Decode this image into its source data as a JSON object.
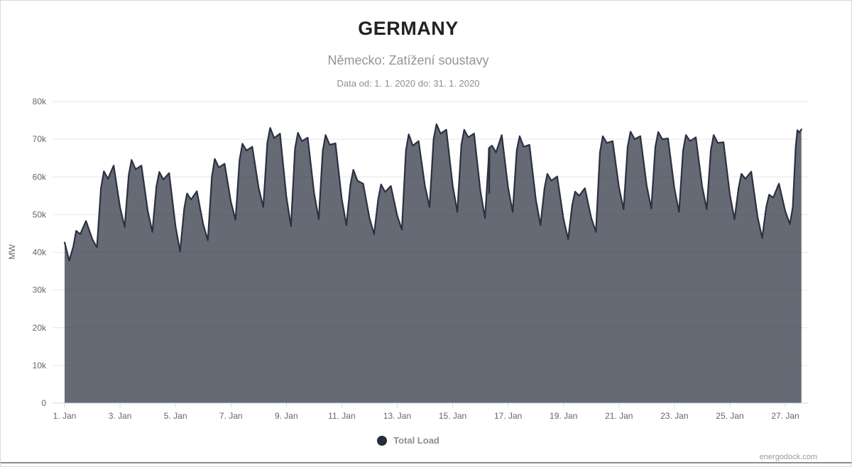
{
  "chart_data": {
    "type": "area",
    "title": "GERMANY",
    "subtitle": "Německo: Zatížení soustavy",
    "date_range": "Data od: 1. 1. 2020 do: 31. 1. 2020",
    "xlabel": "",
    "ylabel": "MW",
    "ylim": [
      0,
      80000
    ],
    "x_unit": "hours since 2020-01-01 00:00",
    "grid": "horizontal",
    "legend_position": "bottom-center",
    "y_axis_ticks": [
      {
        "value": 0,
        "label": "0"
      },
      {
        "value": 10000,
        "label": "10k"
      },
      {
        "value": 20000,
        "label": "20k"
      },
      {
        "value": 30000,
        "label": "30k"
      },
      {
        "value": 40000,
        "label": "40k"
      },
      {
        "value": 50000,
        "label": "50k"
      },
      {
        "value": 60000,
        "label": "60k"
      },
      {
        "value": 70000,
        "label": "70k"
      },
      {
        "value": 80000,
        "label": "80k"
      }
    ],
    "x_axis_ticks": [
      {
        "day": 0,
        "label": "1. Jan"
      },
      {
        "day": 2,
        "label": "3. Jan"
      },
      {
        "day": 4,
        "label": "5. Jan"
      },
      {
        "day": 6,
        "label": "7. Jan"
      },
      {
        "day": 8,
        "label": "9. Jan"
      },
      {
        "day": 10,
        "label": "11. Jan"
      },
      {
        "day": 12,
        "label": "13. Jan"
      },
      {
        "day": 14,
        "label": "15. Jan"
      },
      {
        "day": 16,
        "label": "17. Jan"
      },
      {
        "day": 18,
        "label": "19. Jan"
      },
      {
        "day": 20,
        "label": "21. Jan"
      },
      {
        "day": 22,
        "label": "23. Jan"
      },
      {
        "day": 24,
        "label": "25. Jan"
      },
      {
        "day": 26,
        "label": "27. Jan"
      }
    ],
    "series": [
      {
        "name": "Total Load",
        "color": "#2b3140",
        "fill": "rgba(43,49,64,0.72)",
        "marker_color": "#262c3a",
        "points": [
          [
            0,
            42600
          ],
          [
            4,
            37800
          ],
          [
            7.5,
            41500
          ],
          [
            10,
            45700
          ],
          [
            13.5,
            44800
          ],
          [
            18.5,
            48300
          ],
          [
            24,
            43500
          ],
          [
            28,
            41300
          ],
          [
            31.5,
            57000
          ],
          [
            34,
            61500
          ],
          [
            37.5,
            59500
          ],
          [
            42.5,
            63000
          ],
          [
            48,
            51900
          ],
          [
            52,
            46700
          ],
          [
            55.5,
            60500
          ],
          [
            58,
            64500
          ],
          [
            61.5,
            62000
          ],
          [
            66.5,
            63000
          ],
          [
            72,
            51000
          ],
          [
            76,
            45400
          ],
          [
            79.5,
            57500
          ],
          [
            82,
            61300
          ],
          [
            85.5,
            59300
          ],
          [
            90.5,
            61000
          ],
          [
            96,
            46900
          ],
          [
            100,
            40200
          ],
          [
            103.5,
            51500
          ],
          [
            106,
            55600
          ],
          [
            109.5,
            54000
          ],
          [
            114.5,
            56200
          ],
          [
            120,
            47400
          ],
          [
            124,
            43200
          ],
          [
            127.5,
            60000
          ],
          [
            130,
            64800
          ],
          [
            133.5,
            62500
          ],
          [
            138.5,
            63500
          ],
          [
            144,
            53400
          ],
          [
            148,
            48600
          ],
          [
            151.5,
            64500
          ],
          [
            154,
            68800
          ],
          [
            157.5,
            67000
          ],
          [
            162.5,
            68000
          ],
          [
            168,
            57100
          ],
          [
            172,
            52000
          ],
          [
            175.5,
            69000
          ],
          [
            178,
            73000
          ],
          [
            181.5,
            70300
          ],
          [
            186.5,
            71500
          ],
          [
            192,
            54800
          ],
          [
            196,
            46900
          ],
          [
            199.5,
            67500
          ],
          [
            202,
            71700
          ],
          [
            205.5,
            69500
          ],
          [
            210.5,
            70400
          ],
          [
            216,
            55700
          ],
          [
            220,
            48800
          ],
          [
            223.5,
            67000
          ],
          [
            226,
            71100
          ],
          [
            229.5,
            68500
          ],
          [
            234.5,
            68900
          ],
          [
            240,
            54100
          ],
          [
            244,
            47200
          ],
          [
            247.5,
            58000
          ],
          [
            250,
            61900
          ],
          [
            253.5,
            59000
          ],
          [
            258.5,
            58200
          ],
          [
            264,
            49100
          ],
          [
            268,
            44800
          ],
          [
            271.5,
            54000
          ],
          [
            274,
            58000
          ],
          [
            277.5,
            56000
          ],
          [
            282.5,
            57600
          ],
          [
            288,
            49700
          ],
          [
            292,
            46000
          ],
          [
            295.5,
            67000
          ],
          [
            298,
            71300
          ],
          [
            301.5,
            68300
          ],
          [
            306.5,
            69500
          ],
          [
            312,
            57600
          ],
          [
            316,
            52000
          ],
          [
            319.5,
            70000
          ],
          [
            322,
            74000
          ],
          [
            325.5,
            71500
          ],
          [
            330.5,
            72500
          ],
          [
            336,
            57700
          ],
          [
            340,
            50700
          ],
          [
            343.5,
            68500
          ],
          [
            346,
            72500
          ],
          [
            349.5,
            70500
          ],
          [
            354.5,
            71500
          ],
          [
            360,
            56300
          ],
          [
            364,
            49100
          ],
          [
            367,
            64000
          ],
          [
            367.4,
            67600
          ],
          [
            367.6,
            55700
          ],
          [
            367.9,
            67800
          ],
          [
            370,
            68300
          ],
          [
            373.5,
            66500
          ],
          [
            378.5,
            71100
          ],
          [
            384,
            57200
          ],
          [
            388,
            50700
          ],
          [
            391.5,
            67000
          ],
          [
            394,
            70800
          ],
          [
            397.5,
            68000
          ],
          [
            402.5,
            68500
          ],
          [
            408,
            54000
          ],
          [
            412,
            47200
          ],
          [
            415.5,
            57000
          ],
          [
            418,
            60800
          ],
          [
            421.5,
            59000
          ],
          [
            426.5,
            60100
          ],
          [
            432,
            48800
          ],
          [
            436,
            43500
          ],
          [
            439.5,
            52500
          ],
          [
            442,
            56100
          ],
          [
            445.5,
            55000
          ],
          [
            450.5,
            57000
          ],
          [
            456,
            49100
          ],
          [
            460,
            45400
          ],
          [
            463.5,
            66500
          ],
          [
            466,
            70800
          ],
          [
            469.5,
            69000
          ],
          [
            474.5,
            69500
          ],
          [
            480,
            57200
          ],
          [
            484,
            51400
          ],
          [
            487.5,
            68000
          ],
          [
            490,
            72000
          ],
          [
            493.5,
            70000
          ],
          [
            498.5,
            70800
          ],
          [
            504,
            57700
          ],
          [
            508,
            51600
          ],
          [
            511.5,
            68000
          ],
          [
            514,
            71900
          ],
          [
            517.5,
            70000
          ],
          [
            522.5,
            70200
          ],
          [
            528,
            56900
          ],
          [
            532,
            50700
          ],
          [
            535.5,
            67000
          ],
          [
            538,
            71100
          ],
          [
            541.5,
            69500
          ],
          [
            546.5,
            70500
          ],
          [
            552,
            57500
          ],
          [
            556,
            51400
          ],
          [
            559.5,
            67000
          ],
          [
            562,
            71100
          ],
          [
            565.5,
            69000
          ],
          [
            570.5,
            69200
          ],
          [
            576,
            55300
          ],
          [
            580,
            48800
          ],
          [
            583.5,
            57000
          ],
          [
            586,
            60800
          ],
          [
            589.5,
            59500
          ],
          [
            594.5,
            61400
          ],
          [
            600,
            49400
          ],
          [
            604,
            43800
          ],
          [
            607.5,
            52000
          ],
          [
            610,
            55300
          ],
          [
            613.5,
            54500
          ],
          [
            618.5,
            58200
          ],
          [
            624,
            50900
          ],
          [
            628,
            47500
          ],
          [
            630.5,
            52000
          ],
          [
            633,
            68000
          ],
          [
            634.5,
            72400
          ],
          [
            636,
            71800
          ],
          [
            638,
            72600
          ]
        ]
      }
    ]
  },
  "legend": {
    "items": [
      {
        "label": "Total Load",
        "color": "#262c3a"
      }
    ]
  },
  "footer": {
    "credits": "energodock.com"
  },
  "colors": {
    "grid": "#e6e6e6",
    "axis_line": "#ccd6eb",
    "axis_label": "#666666",
    "title": "#222222",
    "subtitle": "#99948f",
    "date": "#8e8e8e",
    "area_line": "#2b3140",
    "area_fill": "rgba(43,49,64,0.72)",
    "legend_text": "#8f8f8f",
    "credits": "#999999",
    "border": "#d9d9d9"
  }
}
